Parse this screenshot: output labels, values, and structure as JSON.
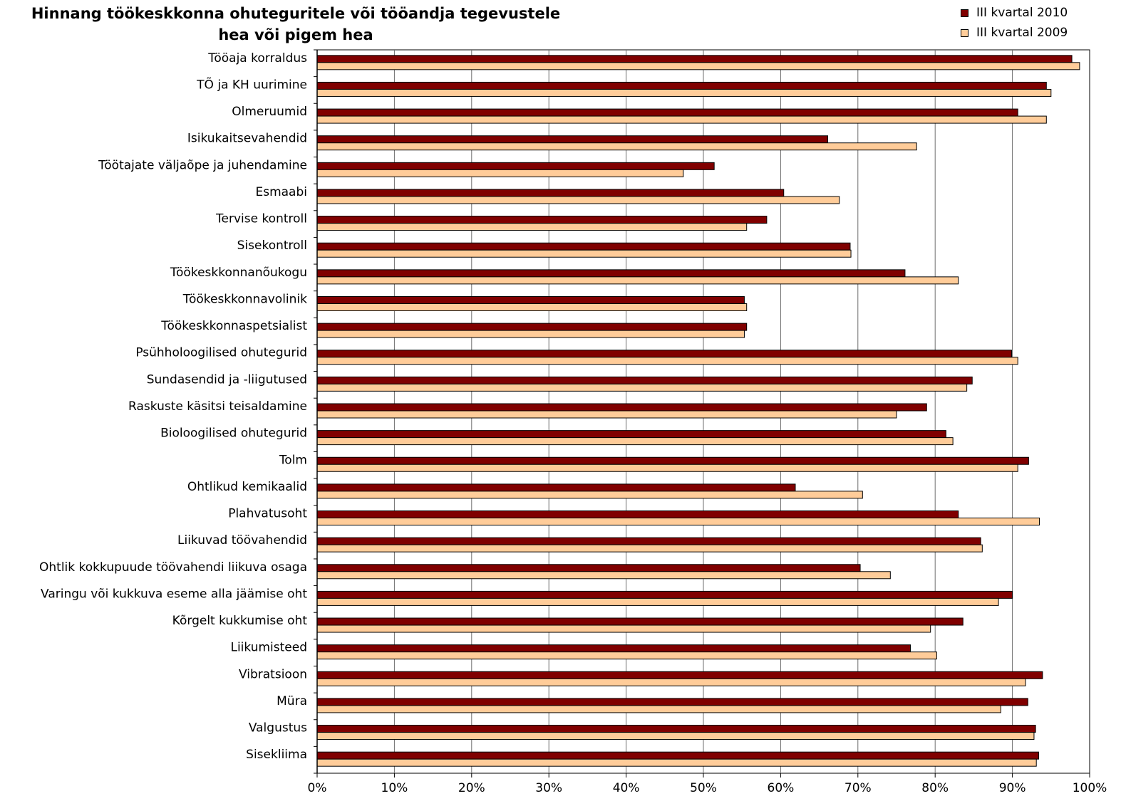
{
  "chart_data": {
    "type": "bar",
    "orientation": "horizontal",
    "title_lines": [
      "Hinnang töökeskkonna ohuteguritele või tööandja tegevustele",
      "hea või pigem hea"
    ],
    "xlim": [
      0,
      100
    ],
    "x_ticks": [
      "0%",
      "10%",
      "20%",
      "30%",
      "40%",
      "50%",
      "60%",
      "70%",
      "80%",
      "90%",
      "100%"
    ],
    "grid": "vertical",
    "legend_position": "top-right",
    "categories": [
      "Tööaja korraldus",
      "TÕ ja KH uurimine",
      "Olmeruumid",
      "Isikukaitsevahendid",
      "Töötajate väljaõpe ja juhendamine",
      "Esmaabi",
      "Tervise kontroll",
      "Sisekontroll",
      "Töökeskkonnanõukogu",
      "Töökeskkonnavolinik",
      "Töökeskkonnaspetsialist",
      "Psühholoogilised ohutegurid",
      "Sundasendid ja -liigutused",
      "Raskuste käsitsi teisaldamine",
      "Bioloogilised ohutegurid",
      "Tolm",
      "Ohtlikud kemikaalid",
      "Plahvatusoht",
      "Liikuvad töövahendid",
      "Ohtlik kokkupuude töövahendi liikuva osaga",
      "Varingu või kukkuva eseme alla jäämise oht",
      "Kõrgelt kukkumise oht",
      "Liikumisteed",
      "Vibratsioon",
      "Müra",
      "Valgustus",
      "Sisekliima"
    ],
    "series": [
      {
        "name": "III kvartal 2010",
        "color": "#800000",
        "values": [
          97.7,
          94.4,
          90.7,
          66.1,
          51.4,
          60.4,
          58.2,
          69.0,
          76.1,
          55.3,
          55.6,
          89.9,
          84.8,
          78.9,
          81.4,
          92.1,
          61.9,
          83.0,
          85.9,
          70.3,
          90.0,
          83.6,
          76.8,
          93.9,
          92.0,
          93.0,
          93.4
        ]
      },
      {
        "name": "III kvartal 2009",
        "color": "#FFCC99",
        "values": [
          98.7,
          95.0,
          94.4,
          77.6,
          47.4,
          67.6,
          55.6,
          69.1,
          83.0,
          55.6,
          55.3,
          90.7,
          84.1,
          75.0,
          82.3,
          90.7,
          70.6,
          93.5,
          86.1,
          74.2,
          88.2,
          79.4,
          80.2,
          91.7,
          88.5,
          92.8,
          93.1
        ]
      }
    ]
  }
}
